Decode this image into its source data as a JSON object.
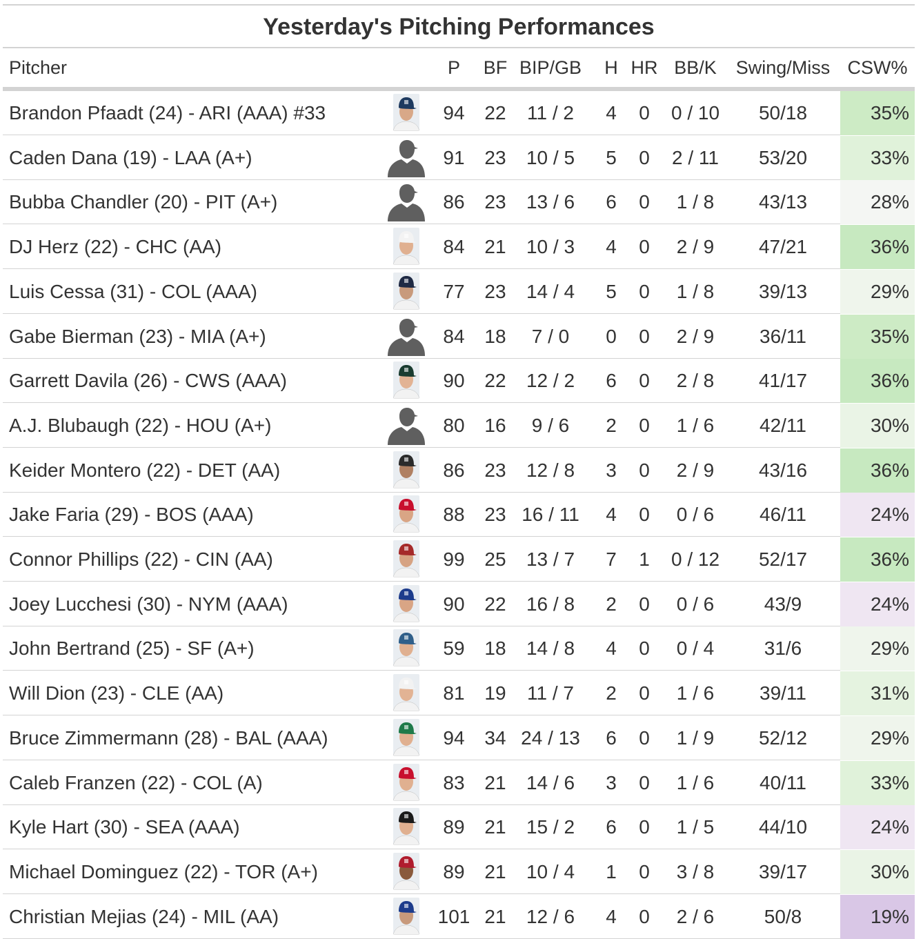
{
  "title": "Yesterday's Pitching Performances",
  "columns": [
    "Pitcher",
    "P",
    "BF",
    "BIP/GB",
    "H",
    "HR",
    "BB/K",
    "Swing/Miss",
    "CSW%"
  ],
  "colors": {
    "csw_high": "#c7e9c0",
    "csw_mid_high": "#e5f5e0",
    "csw_neutral": "#f7f7f7",
    "csw_low": "#efe6f2",
    "csw_lowest": "#d9c7e6",
    "rule": "#d3d3d3",
    "text": "#333333"
  },
  "rows": [
    {
      "pitcher": "Brandon Pfaadt (24) - ARI (AAA) #33",
      "photo": "player-headshot-icon",
      "cap": "#1e3a5f",
      "face": "#d8a888",
      "p": "94",
      "bf": "22",
      "bipgb": "11 / 2",
      "h": "4",
      "hr": "0",
      "bbk": "0 / 10",
      "swingmiss": "50/18",
      "csw": "35%",
      "csw_color": "#cdebc5"
    },
    {
      "pitcher": "Caden Dana (19) - LAA (A+)",
      "photo": "silhouette-icon",
      "p": "91",
      "bf": "23",
      "bipgb": "10 / 5",
      "h": "5",
      "hr": "0",
      "bbk": "2 / 11",
      "swingmiss": "53/20",
      "csw": "33%",
      "csw_color": "#e0f2da"
    },
    {
      "pitcher": "Bubba Chandler (20) - PIT (A+)",
      "photo": "silhouette-icon",
      "p": "86",
      "bf": "23",
      "bipgb": "13 / 6",
      "h": "6",
      "hr": "0",
      "bbk": "1 / 8",
      "swingmiss": "43/13",
      "csw": "28%",
      "csw_color": "#f4f6f3"
    },
    {
      "pitcher": "DJ Herz (22) - CHC (AA)",
      "photo": "player-headshot-icon",
      "cap": "#f3f3f3",
      "face": "#e0b090",
      "p": "84",
      "bf": "21",
      "bipgb": "10 / 3",
      "h": "4",
      "hr": "0",
      "bbk": "2 / 9",
      "swingmiss": "47/21",
      "csw": "36%",
      "csw_color": "#c7e9c0"
    },
    {
      "pitcher": "Luis Cessa (31) - COL (AAA)",
      "photo": "player-headshot-icon",
      "cap": "#1f2a44",
      "face": "#c89a7c",
      "p": "77",
      "bf": "23",
      "bipgb": "14 / 4",
      "h": "5",
      "hr": "0",
      "bbk": "1 / 8",
      "swingmiss": "39/13",
      "csw": "29%",
      "csw_color": "#eff5ec"
    },
    {
      "pitcher": "Gabe Bierman (23) - MIA (A+)",
      "photo": "silhouette-icon",
      "p": "84",
      "bf": "18",
      "bipgb": "7 / 0",
      "h": "0",
      "hr": "0",
      "bbk": "2 / 9",
      "swingmiss": "36/11",
      "csw": "35%",
      "csw_color": "#cdebc5"
    },
    {
      "pitcher": "Garrett Davila (26) - CWS (AAA)",
      "photo": "player-headshot-icon",
      "cap": "#1a3c30",
      "face": "#e2b394",
      "p": "90",
      "bf": "22",
      "bipgb": "12 / 2",
      "h": "6",
      "hr": "0",
      "bbk": "2 / 8",
      "swingmiss": "41/17",
      "csw": "36%",
      "csw_color": "#c7e9c0"
    },
    {
      "pitcher": "A.J. Blubaugh (22) - HOU (A+)",
      "photo": "silhouette-icon",
      "p": "80",
      "bf": "16",
      "bipgb": "9 / 6",
      "h": "2",
      "hr": "0",
      "bbk": "1 / 6",
      "swingmiss": "42/11",
      "csw": "30%",
      "csw_color": "#eaf4e6"
    },
    {
      "pitcher": "Keider Montero (22) - DET (AA)",
      "photo": "player-headshot-icon",
      "cap": "#2b2b2b",
      "face": "#b08062",
      "p": "86",
      "bf": "23",
      "bipgb": "12 / 8",
      "h": "3",
      "hr": "0",
      "bbk": "2 / 9",
      "swingmiss": "43/16",
      "csw": "36%",
      "csw_color": "#c7e9c0"
    },
    {
      "pitcher": "Jake Faria (29) - BOS (AAA)",
      "photo": "player-headshot-icon",
      "cap": "#c8102e",
      "face": "#d9a585",
      "p": "88",
      "bf": "23",
      "bipgb": "16 / 11",
      "h": "4",
      "hr": "0",
      "bbk": "0 / 6",
      "swingmiss": "46/11",
      "csw": "24%",
      "csw_color": "#efe6f2"
    },
    {
      "pitcher": "Connor Phillips (22) - CIN (AA)",
      "photo": "player-headshot-icon",
      "cap": "#a52a2a",
      "face": "#d6a383",
      "p": "99",
      "bf": "25",
      "bipgb": "13 / 7",
      "h": "7",
      "hr": "1",
      "bbk": "0 / 12",
      "swingmiss": "52/17",
      "csw": "36%",
      "csw_color": "#c7e9c0"
    },
    {
      "pitcher": "Joey Lucchesi (30) - NYM (AAA)",
      "photo": "player-headshot-icon",
      "cap": "#1d3c8c",
      "face": "#d9a585",
      "p": "90",
      "bf": "22",
      "bipgb": "16 / 8",
      "h": "2",
      "hr": "0",
      "bbk": "0 / 6",
      "swingmiss": "43/9",
      "csw": "24%",
      "csw_color": "#efe6f2"
    },
    {
      "pitcher": "John Bertrand (25) - SF (A+)",
      "photo": "player-headshot-icon",
      "cap": "#2f5f8a",
      "face": "#e0b090",
      "p": "59",
      "bf": "18",
      "bipgb": "14 / 8",
      "h": "4",
      "hr": "0",
      "bbk": "0 / 4",
      "swingmiss": "31/6",
      "csw": "29%",
      "csw_color": "#eff5ec"
    },
    {
      "pitcher": "Will Dion (23) - CLE (AA)",
      "photo": "player-headshot-icon",
      "cap": "#f2f2f2",
      "face": "#e2b394",
      "p": "81",
      "bf": "19",
      "bipgb": "11 / 7",
      "h": "2",
      "hr": "0",
      "bbk": "1 / 6",
      "swingmiss": "39/11",
      "csw": "31%",
      "csw_color": "#e5f3e0"
    },
    {
      "pitcher": "Bruce Zimmermann (28) - BAL (AAA)",
      "photo": "player-headshot-icon",
      "cap": "#1f7a4a",
      "face": "#e0b090",
      "p": "94",
      "bf": "34",
      "bipgb": "24 / 13",
      "h": "6",
      "hr": "0",
      "bbk": "1 / 9",
      "swingmiss": "52/12",
      "csw": "29%",
      "csw_color": "#eff5ec"
    },
    {
      "pitcher": "Caleb Franzen (22) - COL (A)",
      "photo": "player-headshot-icon",
      "cap": "#c8102e",
      "face": "#e0b090",
      "p": "83",
      "bf": "21",
      "bipgb": "14 / 6",
      "h": "3",
      "hr": "0",
      "bbk": "1 / 6",
      "swingmiss": "40/11",
      "csw": "33%",
      "csw_color": "#e0f2da"
    },
    {
      "pitcher": "Kyle Hart (30) - SEA (AAA)",
      "photo": "player-headshot-icon",
      "cap": "#1a1a1a",
      "face": "#e0b090",
      "p": "89",
      "bf": "21",
      "bipgb": "15 / 2",
      "h": "6",
      "hr": "0",
      "bbk": "1 / 5",
      "swingmiss": "44/10",
      "csw": "24%",
      "csw_color": "#efe6f2"
    },
    {
      "pitcher": "Michael Dominguez (22) - TOR (A+)",
      "photo": "player-headshot-icon",
      "cap": "#b01c2e",
      "face": "#8a5a3c",
      "p": "89",
      "bf": "21",
      "bipgb": "10 / 4",
      "h": "1",
      "hr": "0",
      "bbk": "3 / 8",
      "swingmiss": "39/17",
      "csw": "30%",
      "csw_color": "#eaf4e6"
    },
    {
      "pitcher": "Christian Mejias (24) - MIL (AA)",
      "photo": "player-headshot-icon",
      "cap": "#1d3c8c",
      "face": "#c89a7c",
      "p": "101",
      "bf": "21",
      "bipgb": "12 / 6",
      "h": "4",
      "hr": "0",
      "bbk": "2 / 6",
      "swingmiss": "50/8",
      "csw": "19%",
      "csw_color": "#d9c7e6"
    }
  ]
}
